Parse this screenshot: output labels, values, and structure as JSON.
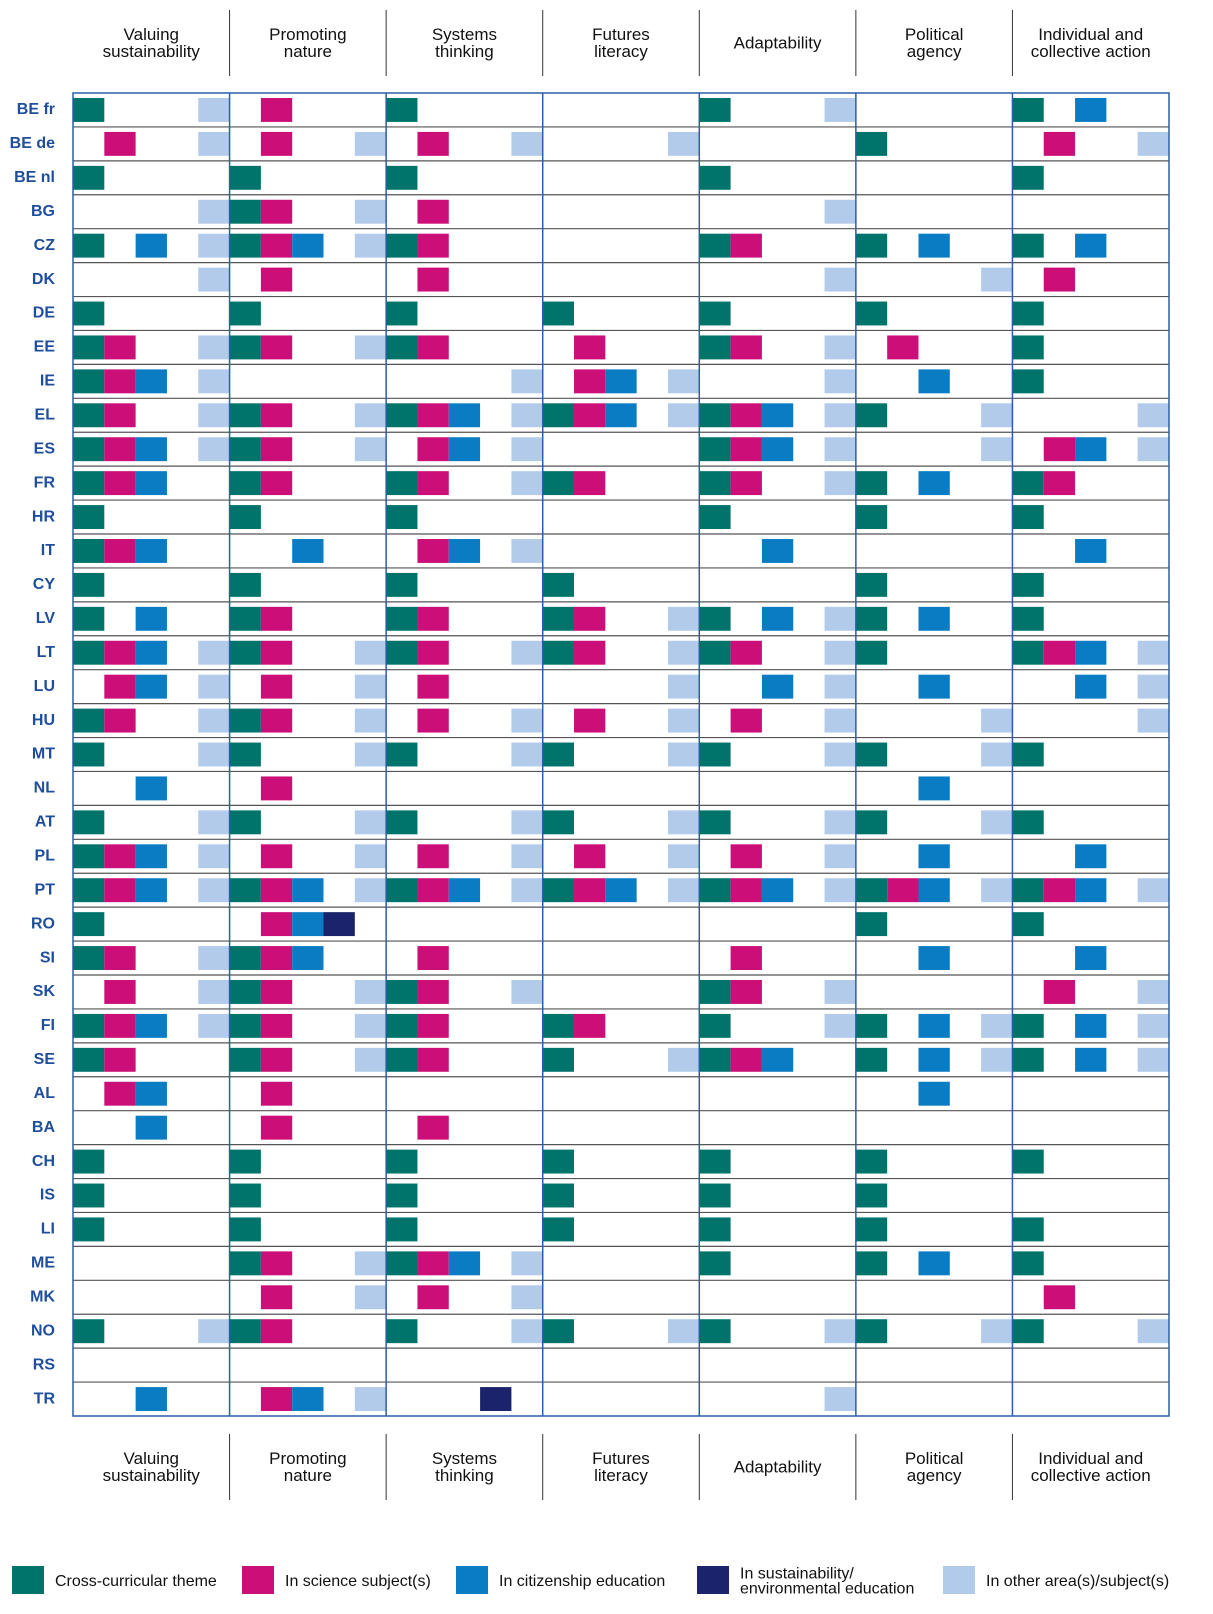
{
  "table": {
    "columns": [
      [
        "Valuing",
        "sustainability"
      ],
      [
        "Promoting",
        "nature"
      ],
      [
        "Systems",
        "thinking"
      ],
      [
        "Futures",
        "literacy"
      ],
      [
        "Adaptability"
      ],
      [
        "Political",
        "agency"
      ],
      [
        "Individual and",
        "collective action"
      ]
    ],
    "legend": [
      {
        "label": [
          "Cross-curricular theme"
        ],
        "color": "#00736b"
      },
      {
        "label": [
          "In science subject(s)"
        ],
        "color": "#cc0e78"
      },
      {
        "label": [
          "In citizenship education"
        ],
        "color": "#0a7cc4"
      },
      {
        "label": [
          "In sustainability/",
          "environmental education"
        ],
        "color": "#1a236b"
      },
      {
        "label": [
          "In other area(s)/subject(s)"
        ],
        "color": "#b3cbeb"
      }
    ],
    "rows": [
      {
        "country": "BE fr",
        "cells": [
          [
            0,
            4
          ],
          [
            1
          ],
          [
            0
          ],
          [],
          [
            0,
            4
          ],
          [],
          [
            0,
            2
          ]
        ]
      },
      {
        "country": "BE de",
        "cells": [
          [
            1,
            4
          ],
          [
            1,
            4
          ],
          [
            1,
            4
          ],
          [
            4
          ],
          [],
          [
            0
          ],
          [
            1,
            4
          ]
        ]
      },
      {
        "country": "BE nl",
        "cells": [
          [
            0
          ],
          [
            0
          ],
          [
            0
          ],
          [],
          [
            0
          ],
          [],
          [
            0
          ]
        ]
      },
      {
        "country": "BG",
        "cells": [
          [
            4
          ],
          [
            0,
            1,
            4
          ],
          [
            1
          ],
          [],
          [
            4
          ],
          [],
          []
        ]
      },
      {
        "country": "CZ",
        "cells": [
          [
            0,
            2,
            4
          ],
          [
            0,
            1,
            2,
            4
          ],
          [
            0,
            1
          ],
          [],
          [
            0,
            1
          ],
          [
            0,
            2
          ],
          [
            0,
            2
          ]
        ]
      },
      {
        "country": "DK",
        "cells": [
          [
            4
          ],
          [
            1
          ],
          [
            1
          ],
          [],
          [
            4
          ],
          [
            4
          ],
          [
            1
          ]
        ]
      },
      {
        "country": "DE",
        "cells": [
          [
            0
          ],
          [
            0
          ],
          [
            0
          ],
          [
            0
          ],
          [
            0
          ],
          [
            0
          ],
          [
            0
          ]
        ]
      },
      {
        "country": "EE",
        "cells": [
          [
            0,
            1,
            4
          ],
          [
            0,
            1,
            4
          ],
          [
            0,
            1
          ],
          [
            1
          ],
          [
            0,
            1,
            4
          ],
          [
            1
          ],
          [
            0
          ]
        ]
      },
      {
        "country": "IE",
        "cells": [
          [
            0,
            1,
            2,
            4
          ],
          [],
          [
            4
          ],
          [
            1,
            2,
            4
          ],
          [
            4
          ],
          [
            2
          ],
          [
            0
          ]
        ]
      },
      {
        "country": "EL",
        "cells": [
          [
            0,
            1,
            4
          ],
          [
            0,
            1,
            4
          ],
          [
            0,
            1,
            2,
            4
          ],
          [
            0,
            1,
            2,
            4
          ],
          [
            0,
            1,
            2,
            4
          ],
          [
            0,
            4
          ],
          [
            4
          ]
        ]
      },
      {
        "country": "ES",
        "cells": [
          [
            0,
            1,
            2,
            4
          ],
          [
            0,
            1,
            4
          ],
          [
            1,
            2,
            4
          ],
          [],
          [
            0,
            1,
            2,
            4
          ],
          [
            4
          ],
          [
            1,
            2,
            4
          ]
        ]
      },
      {
        "country": "FR",
        "cells": [
          [
            0,
            1,
            2
          ],
          [
            0,
            1
          ],
          [
            0,
            1,
            4
          ],
          [
            0,
            1
          ],
          [
            0,
            1,
            4
          ],
          [
            0,
            2
          ],
          [
            0,
            1
          ]
        ]
      },
      {
        "country": "HR",
        "cells": [
          [
            0
          ],
          [
            0
          ],
          [
            0
          ],
          [],
          [
            0
          ],
          [
            0
          ],
          [
            0
          ]
        ]
      },
      {
        "country": "IT",
        "cells": [
          [
            0,
            1,
            2
          ],
          [
            2
          ],
          [
            1,
            2,
            4
          ],
          [],
          [
            2
          ],
          [],
          [
            2
          ]
        ]
      },
      {
        "country": "CY",
        "cells": [
          [
            0
          ],
          [
            0
          ],
          [
            0
          ],
          [
            0
          ],
          [],
          [
            0
          ],
          [
            0
          ]
        ]
      },
      {
        "country": "LV",
        "cells": [
          [
            0,
            2
          ],
          [
            0,
            1
          ],
          [
            0,
            1
          ],
          [
            0,
            1,
            4
          ],
          [
            0,
            2,
            4
          ],
          [
            0,
            2
          ],
          [
            0
          ]
        ]
      },
      {
        "country": "LT",
        "cells": [
          [
            0,
            1,
            2,
            4
          ],
          [
            0,
            1,
            4
          ],
          [
            0,
            1,
            4
          ],
          [
            0,
            1,
            4
          ],
          [
            0,
            1,
            4
          ],
          [
            0
          ],
          [
            0,
            1,
            2,
            4
          ]
        ]
      },
      {
        "country": "LU",
        "cells": [
          [
            1,
            2,
            4
          ],
          [
            1,
            4
          ],
          [
            1
          ],
          [
            4
          ],
          [
            2,
            4
          ],
          [
            2
          ],
          [
            2,
            4
          ]
        ]
      },
      {
        "country": "HU",
        "cells": [
          [
            0,
            1,
            4
          ],
          [
            0,
            1,
            4
          ],
          [
            1,
            4
          ],
          [
            1,
            4
          ],
          [
            1,
            4
          ],
          [
            4
          ],
          [
            4
          ]
        ]
      },
      {
        "country": "MT",
        "cells": [
          [
            0,
            4
          ],
          [
            0,
            4
          ],
          [
            0,
            4
          ],
          [
            0,
            4
          ],
          [
            0,
            4
          ],
          [
            0,
            4
          ],
          [
            0
          ]
        ]
      },
      {
        "country": "NL",
        "cells": [
          [
            2
          ],
          [
            1
          ],
          [],
          [],
          [],
          [
            2
          ],
          []
        ]
      },
      {
        "country": "AT",
        "cells": [
          [
            0,
            4
          ],
          [
            0,
            4
          ],
          [
            0,
            4
          ],
          [
            0,
            4
          ],
          [
            0,
            4
          ],
          [
            0,
            4
          ],
          [
            0
          ]
        ]
      },
      {
        "country": "PL",
        "cells": [
          [
            0,
            1,
            2,
            4
          ],
          [
            1,
            4
          ],
          [
            1,
            4
          ],
          [
            1,
            4
          ],
          [
            1,
            4
          ],
          [
            2
          ],
          [
            2
          ]
        ]
      },
      {
        "country": "PT",
        "cells": [
          [
            0,
            1,
            2,
            4
          ],
          [
            0,
            1,
            2,
            4
          ],
          [
            0,
            1,
            2,
            4
          ],
          [
            0,
            1,
            2,
            4
          ],
          [
            0,
            1,
            2,
            4
          ],
          [
            0,
            1,
            2,
            4
          ],
          [
            0,
            1,
            2,
            4
          ]
        ]
      },
      {
        "country": "RO",
        "cells": [
          [
            0
          ],
          [
            1,
            2,
            3
          ],
          [],
          [],
          [],
          [
            0
          ],
          [
            0
          ]
        ]
      },
      {
        "country": "SI",
        "cells": [
          [
            0,
            1,
            4
          ],
          [
            0,
            1,
            2
          ],
          [
            1
          ],
          [],
          [
            1
          ],
          [
            2
          ],
          [
            2
          ]
        ]
      },
      {
        "country": "SK",
        "cells": [
          [
            1,
            4
          ],
          [
            0,
            1,
            4
          ],
          [
            0,
            1,
            4
          ],
          [],
          [
            0,
            1,
            4
          ],
          [],
          [
            1,
            4
          ]
        ]
      },
      {
        "country": "FI",
        "cells": [
          [
            0,
            1,
            2,
            4
          ],
          [
            0,
            1,
            4
          ],
          [
            0,
            1
          ],
          [
            0,
            1
          ],
          [
            0,
            4
          ],
          [
            0,
            2,
            4
          ],
          [
            0,
            2,
            4
          ]
        ]
      },
      {
        "country": "SE",
        "cells": [
          [
            0,
            1
          ],
          [
            0,
            1,
            4
          ],
          [
            0,
            1
          ],
          [
            0,
            4
          ],
          [
            0,
            1,
            2
          ],
          [
            0,
            2,
            4
          ],
          [
            0,
            2,
            4
          ]
        ]
      },
      {
        "country": "AL",
        "cells": [
          [
            1,
            2
          ],
          [
            1
          ],
          [],
          [],
          [],
          [
            2
          ],
          []
        ]
      },
      {
        "country": "BA",
        "cells": [
          [
            2
          ],
          [
            1
          ],
          [
            1
          ],
          [],
          [],
          [],
          []
        ]
      },
      {
        "country": "CH",
        "cells": [
          [
            0
          ],
          [
            0
          ],
          [
            0
          ],
          [
            0
          ],
          [
            0
          ],
          [
            0
          ],
          [
            0
          ]
        ]
      },
      {
        "country": "IS",
        "cells": [
          [
            0
          ],
          [
            0
          ],
          [
            0
          ],
          [
            0
          ],
          [
            0
          ],
          [
            0
          ],
          []
        ]
      },
      {
        "country": "LI",
        "cells": [
          [
            0
          ],
          [
            0
          ],
          [
            0
          ],
          [
            0
          ],
          [
            0
          ],
          [
            0
          ],
          [
            0
          ]
        ]
      },
      {
        "country": "ME",
        "cells": [
          [],
          [
            0,
            1,
            4
          ],
          [
            0,
            1,
            2,
            4
          ],
          [],
          [
            0
          ],
          [
            0,
            2
          ],
          [
            0
          ]
        ]
      },
      {
        "country": "MK",
        "cells": [
          [],
          [
            1,
            4
          ],
          [
            1,
            4
          ],
          [],
          [],
          [],
          [
            1
          ]
        ]
      },
      {
        "country": "NO",
        "cells": [
          [
            0,
            4
          ],
          [
            0,
            1
          ],
          [
            0,
            4
          ],
          [
            0,
            4
          ],
          [
            0,
            4
          ],
          [
            0,
            4
          ],
          [
            0,
            4
          ]
        ]
      },
      {
        "country": "RS",
        "cells": [
          [],
          [],
          [],
          [],
          [],
          [],
          []
        ]
      },
      {
        "country": "TR",
        "cells": [
          [
            2
          ],
          [
            1,
            2,
            4
          ],
          [
            3
          ],
          [],
          [
            4
          ],
          [],
          []
        ]
      }
    ]
  }
}
